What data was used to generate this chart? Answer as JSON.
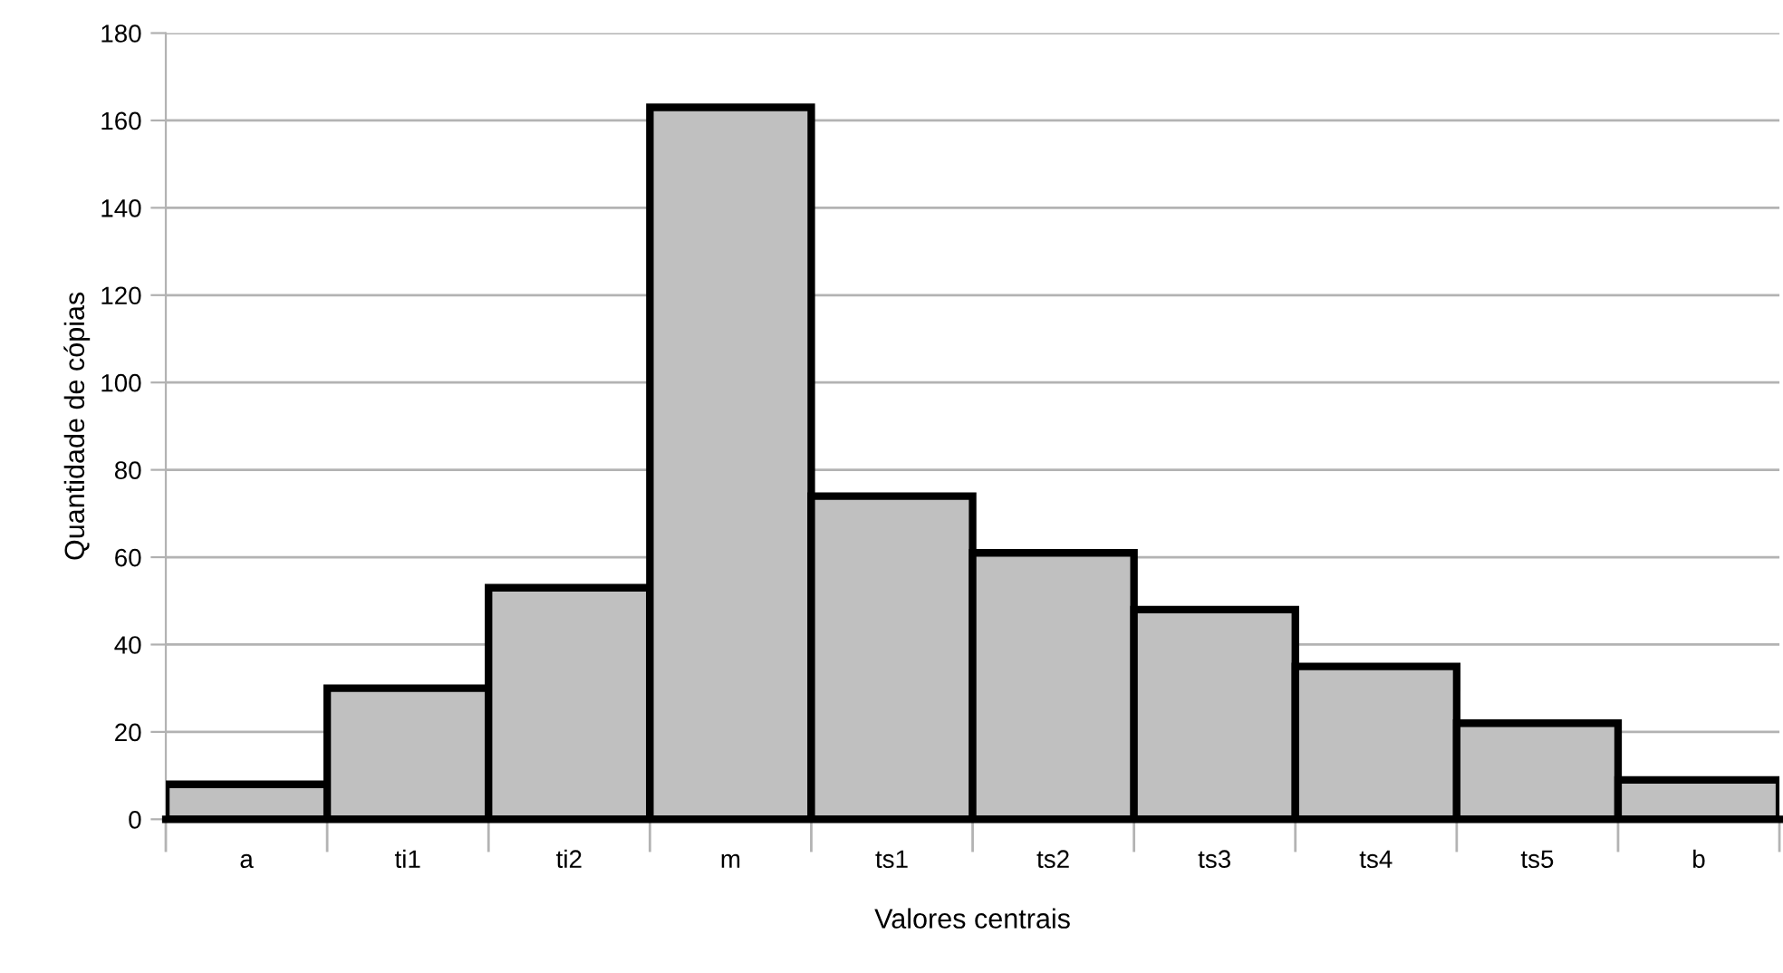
{
  "chart_data": {
    "type": "bar",
    "xlabel": "Valores centrais",
    "ylabel": "Quantidade de cópias",
    "categories": [
      "a",
      "ti1",
      "ti2",
      "m",
      "ts1",
      "ts2",
      "ts3",
      "ts4",
      "ts5",
      "b"
    ],
    "values": [
      8,
      30,
      53,
      163,
      74,
      61,
      48,
      35,
      22,
      9
    ],
    "color": "#c0c0c0",
    "ylim": [
      0,
      180
    ],
    "yticks": [
      0,
      20,
      40,
      60,
      80,
      100,
      120,
      140,
      160,
      180
    ],
    "grid": "y",
    "legend": false
  }
}
